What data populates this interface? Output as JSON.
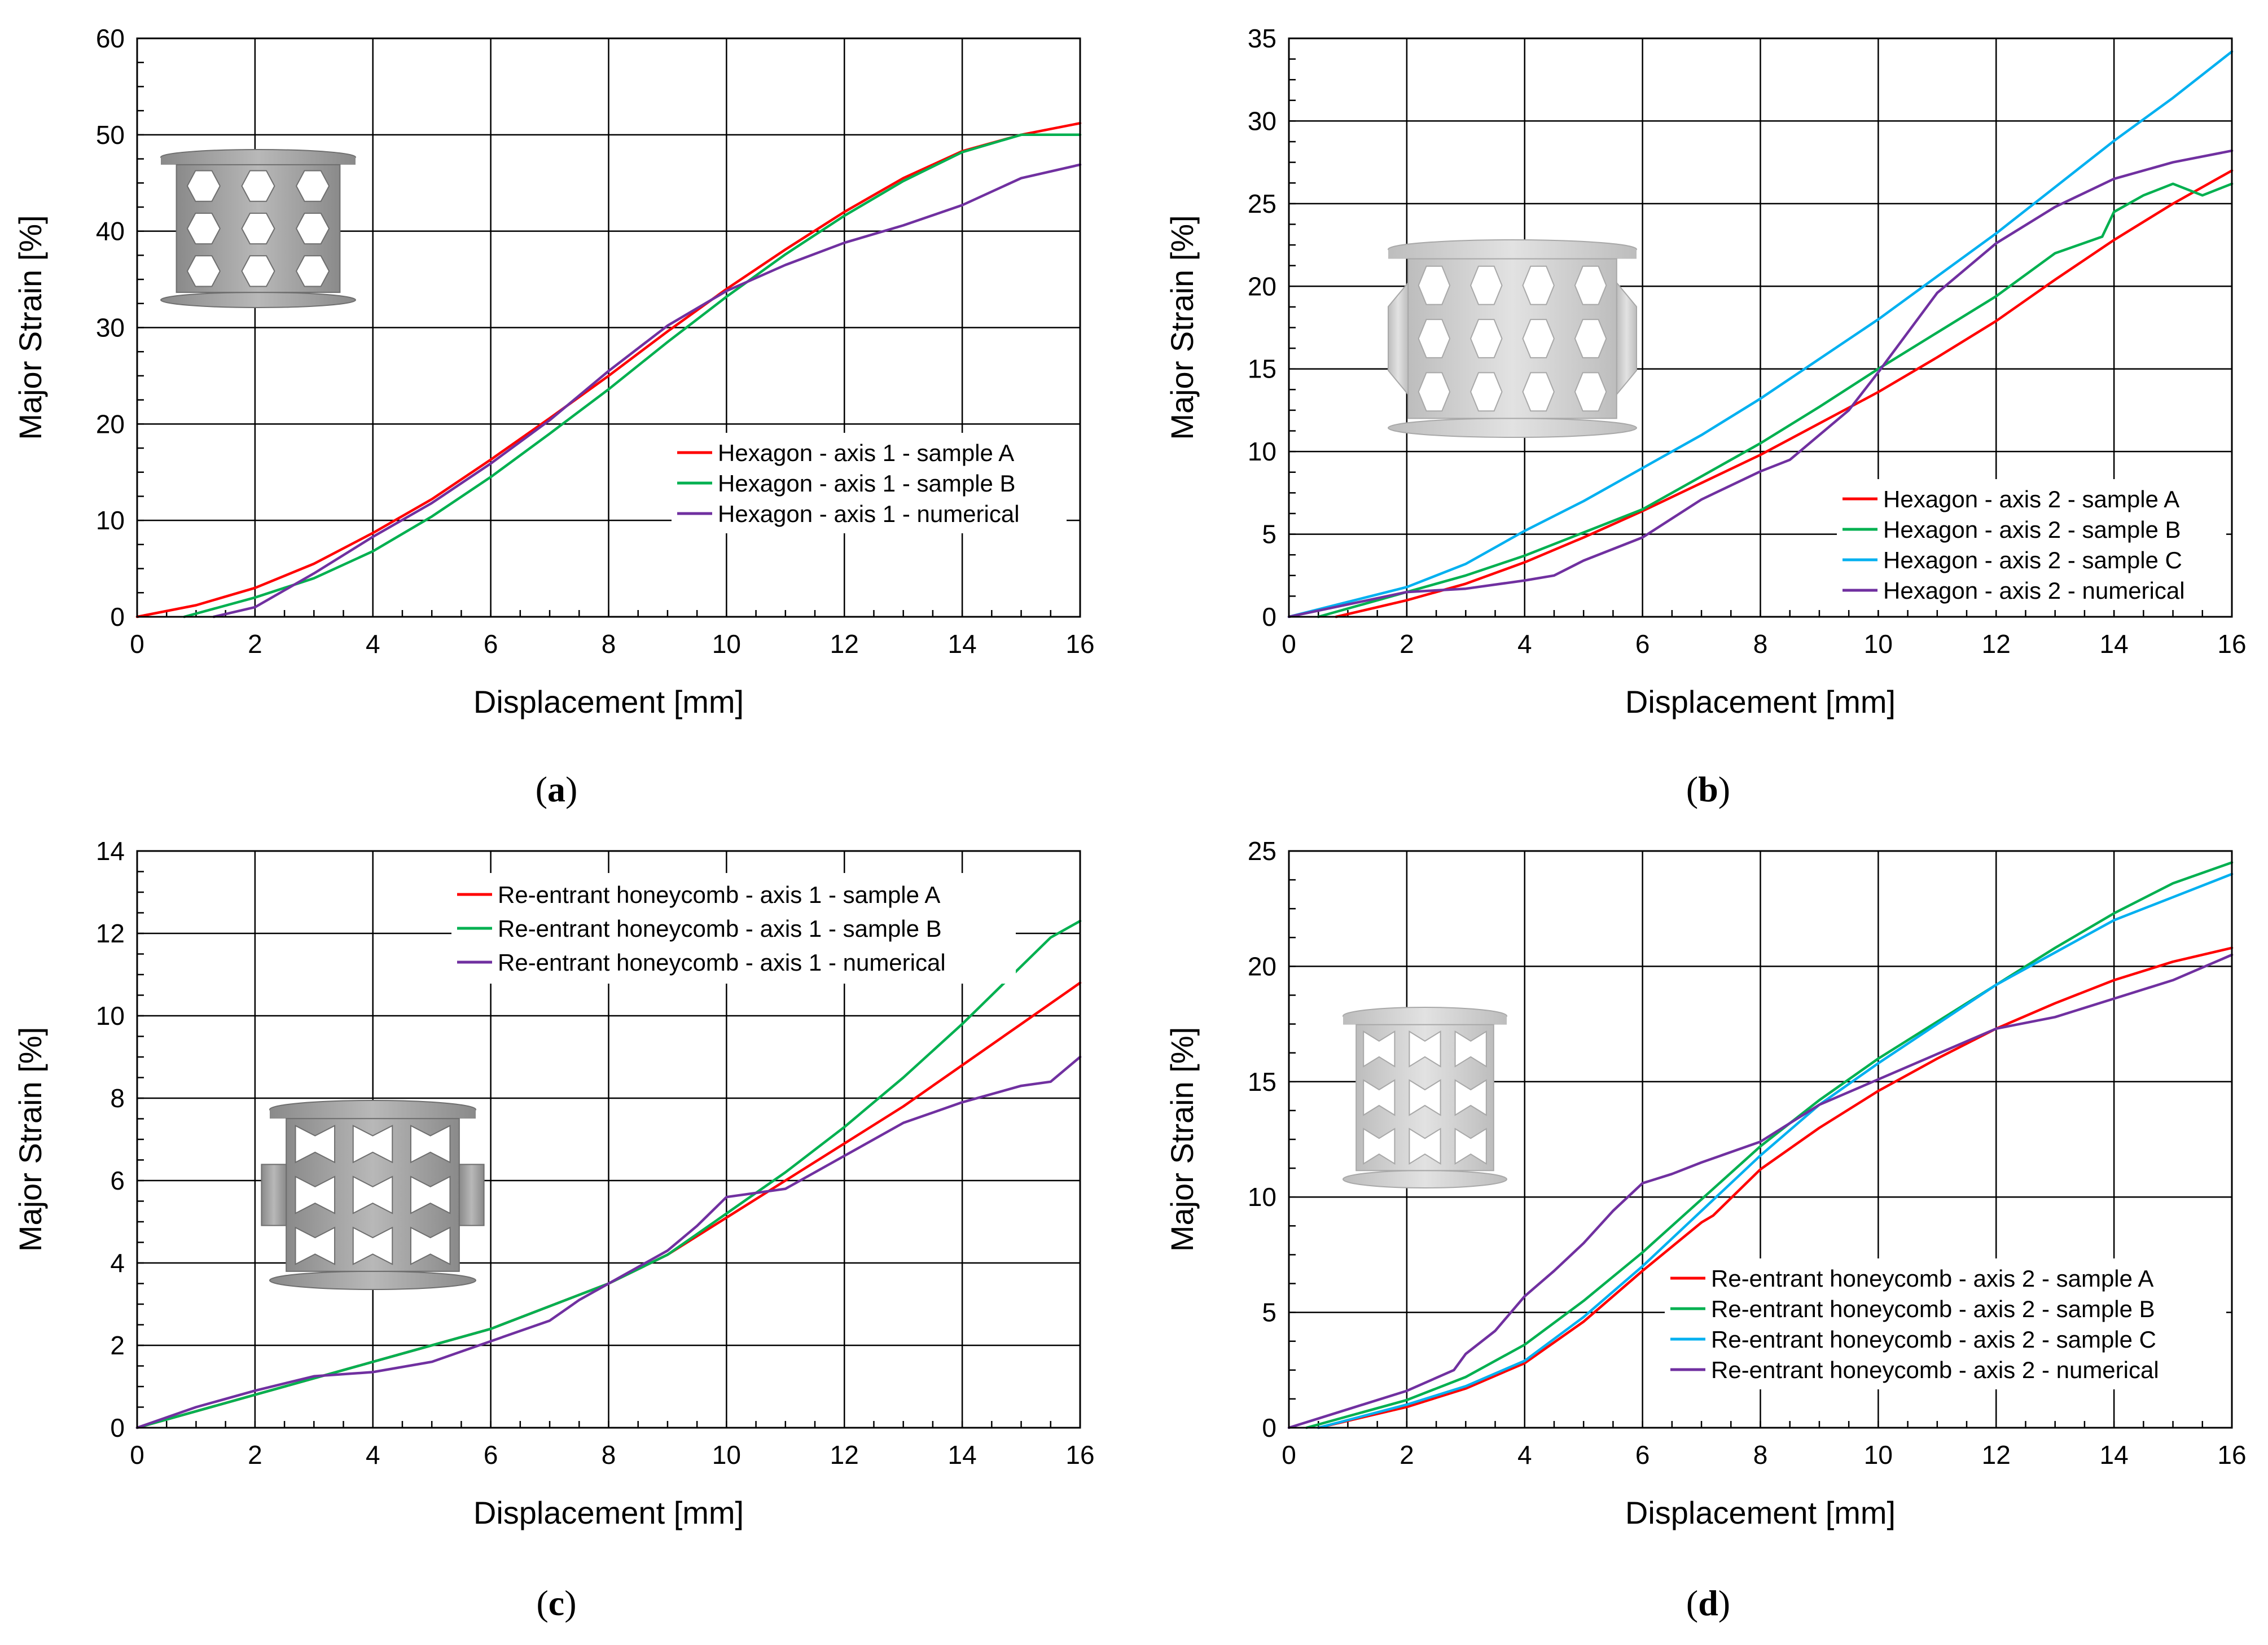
{
  "colors": {
    "red": "#ff0000",
    "green": "#00b050",
    "cyan": "#00b0f0",
    "purple": "#7030a0"
  },
  "chart_data": [
    {
      "type": "line",
      "caption": {
        "open": "(",
        "letter": "a",
        "close": ")"
      },
      "xlabel": "Displacement [mm]",
      "ylabel": "Major Strain [%]",
      "xlim": [
        0,
        16
      ],
      "ylim": [
        0,
        60
      ],
      "xticks": [
        0,
        2,
        4,
        6,
        8,
        10,
        12,
        14,
        16
      ],
      "yticks": [
        0,
        10,
        20,
        30,
        40,
        50,
        60
      ],
      "legend_position": "lower-right",
      "inset": "hexagon-axis-1-specimen",
      "series": [
        {
          "name": "Hexagon - axis 1 - sample A",
          "color": "#ff0000",
          "x": [
            0,
            1,
            2,
            3,
            4,
            5,
            6,
            7,
            8,
            9,
            10,
            11,
            12,
            13,
            14,
            15,
            16
          ],
          "y": [
            0,
            1.2,
            3,
            5.5,
            8.7,
            12.2,
            16.3,
            20.6,
            25,
            29.6,
            34,
            38.1,
            42,
            45.5,
            48.3,
            50,
            51.2
          ]
        },
        {
          "name": "Hexagon - axis 1 - sample B",
          "color": "#00b050",
          "x": [
            0.8,
            2,
            3,
            4,
            5,
            6,
            7,
            8,
            9,
            10,
            11,
            12,
            13,
            14,
            15,
            16
          ],
          "y": [
            0,
            2,
            4,
            6.8,
            10.4,
            14.5,
            19,
            23.6,
            28.5,
            33.2,
            37.6,
            41.6,
            45.2,
            48.2,
            50,
            50
          ]
        },
        {
          "name": "Hexagon - axis 1 - numerical",
          "color": "#7030a0",
          "x": [
            1.3,
            2,
            3,
            4,
            5,
            6,
            7,
            8,
            9,
            10,
            11,
            12,
            13,
            14,
            15,
            16
          ],
          "y": [
            0,
            1,
            4.5,
            8.3,
            11.8,
            15.9,
            20.4,
            25.5,
            30.2,
            33.8,
            36.5,
            38.8,
            40.6,
            42.7,
            45.5,
            46.9
          ]
        }
      ]
    },
    {
      "type": "line",
      "caption": {
        "open": "(",
        "letter": "b",
        "close": ")"
      },
      "xlabel": "Displacement [mm]",
      "ylabel": "Major Strain [%]",
      "xlim": [
        0,
        16
      ],
      "ylim": [
        0,
        35
      ],
      "xticks": [
        0,
        2,
        4,
        6,
        8,
        10,
        12,
        14,
        16
      ],
      "yticks": [
        0,
        5,
        10,
        15,
        20,
        25,
        30,
        35
      ],
      "legend_position": "lower-right",
      "inset": "hexagon-axis-2-specimen",
      "series": [
        {
          "name": "Hexagon - axis 2 - sample A",
          "color": "#ff0000",
          "x": [
            0.8,
            2,
            3,
            4,
            5,
            6,
            7,
            8,
            9,
            10,
            11,
            12,
            13,
            14,
            15,
            16
          ],
          "y": [
            0,
            1,
            2,
            3.3,
            4.8,
            6.4,
            8.1,
            9.8,
            11.7,
            13.6,
            15.7,
            17.9,
            20.4,
            22.8,
            25,
            27
          ]
        },
        {
          "name": "Hexagon - axis 2 - sample B",
          "color": "#00b050",
          "x": [
            0.5,
            2,
            3,
            4,
            5,
            6,
            7,
            8,
            9,
            10,
            11,
            12,
            13,
            13.8,
            14,
            14.5,
            15,
            15.5,
            16
          ],
          "y": [
            0,
            1.5,
            2.5,
            3.7,
            5.1,
            6.5,
            8.5,
            10.5,
            12.7,
            15,
            17.2,
            19.4,
            22,
            23,
            24.5,
            25.5,
            26.2,
            25.5,
            26.2
          ]
        },
        {
          "name": "Hexagon - axis 2 - sample C",
          "color": "#00b0f0",
          "x": [
            0,
            2,
            3,
            4,
            5,
            6,
            7,
            8,
            9,
            10,
            11,
            12,
            13,
            14,
            15,
            16
          ],
          "y": [
            0,
            1.8,
            3.2,
            5.2,
            7,
            9,
            11,
            13.2,
            15.6,
            18,
            20.6,
            23.2,
            26,
            28.8,
            31.4,
            34.2
          ]
        },
        {
          "name": "Hexagon - axis 2 - numerical",
          "color": "#7030a0",
          "x": [
            0,
            2,
            3,
            4,
            4.5,
            5,
            6,
            7,
            8,
            8.5,
            9,
            9.5,
            10,
            11,
            12,
            13,
            14,
            15,
            16
          ],
          "y": [
            0,
            1.5,
            1.7,
            2.2,
            2.5,
            3.4,
            4.8,
            7.1,
            8.8,
            9.5,
            11,
            12.5,
            14.8,
            19.6,
            22.6,
            24.8,
            26.5,
            27.5,
            28.2
          ]
        }
      ]
    },
    {
      "type": "line",
      "caption": {
        "open": "(",
        "letter": "c",
        "close": ")"
      },
      "xlabel": "Displacement [mm]",
      "ylabel": "Major Strain [%]",
      "xlim": [
        0,
        16
      ],
      "ylim": [
        0,
        14
      ],
      "xticks": [
        0,
        2,
        4,
        6,
        8,
        10,
        12,
        14,
        16
      ],
      "yticks": [
        0,
        2,
        4,
        6,
        8,
        10,
        12,
        14
      ],
      "legend_position": "top-right",
      "inset": "re-entrant-axis-1-specimen",
      "series": [
        {
          "name": "Re-entrant honeycomb - axis 1 - sample A",
          "color": "#ff0000",
          "x": [
            0,
            2,
            4,
            6,
            8,
            9,
            10,
            11,
            12,
            13,
            14,
            15,
            16
          ],
          "y": [
            0,
            0.8,
            1.6,
            2.4,
            3.5,
            4.2,
            5.1,
            6,
            6.9,
            7.8,
            8.8,
            9.8,
            10.8
          ]
        },
        {
          "name": "Re-entrant honeycomb - axis 1 - sample B",
          "color": "#00b050",
          "x": [
            0,
            2,
            4,
            6,
            8,
            9,
            10,
            11,
            12,
            13,
            14,
            15,
            15.5,
            16
          ],
          "y": [
            0,
            0.8,
            1.6,
            2.4,
            3.5,
            4.2,
            5.2,
            6.2,
            7.3,
            8.5,
            9.8,
            11.2,
            11.9,
            12.3
          ]
        },
        {
          "name": "Re-entrant honeycomb - axis 1 - numerical",
          "color": "#7030a0",
          "x": [
            0,
            1,
            2,
            3,
            4,
            5,
            6,
            7,
            7.5,
            8,
            9,
            9.5,
            10,
            11,
            12,
            13,
            14,
            15,
            15.5,
            16
          ],
          "y": [
            0,
            0.5,
            0.9,
            1.25,
            1.35,
            1.6,
            2.1,
            2.6,
            3.1,
            3.5,
            4.3,
            4.9,
            5.6,
            5.8,
            6.6,
            7.4,
            7.9,
            8.3,
            8.4,
            9
          ]
        }
      ]
    },
    {
      "type": "line",
      "caption": {
        "open": "(",
        "letter": "d",
        "close": ")"
      },
      "xlabel": "Displacement [mm]",
      "ylabel": "Major Strain [%]",
      "xlim": [
        0,
        16
      ],
      "ylim": [
        0,
        25
      ],
      "xticks": [
        0,
        2,
        4,
        6,
        8,
        10,
        12,
        14,
        16
      ],
      "yticks": [
        0,
        5,
        10,
        15,
        20,
        25
      ],
      "legend_position": "lower-right",
      "inset": "re-entrant-axis-2-specimen",
      "series": [
        {
          "name": "Re-entrant honeycomb - axis 2 - sample A",
          "color": "#ff0000",
          "x": [
            0.5,
            2,
            3,
            4,
            5,
            6,
            7,
            7.2,
            8,
            9,
            10,
            11,
            12,
            13,
            14,
            15,
            16
          ],
          "y": [
            0,
            0.9,
            1.7,
            2.8,
            4.6,
            6.8,
            8.9,
            9.2,
            11.2,
            13,
            14.6,
            16,
            17.3,
            18.4,
            19.4,
            20.2,
            20.8
          ]
        },
        {
          "name": "Re-entrant honeycomb - axis 2 - sample B",
          "color": "#00b050",
          "x": [
            0.3,
            2,
            3,
            4,
            5,
            6,
            7,
            8,
            9,
            10,
            11,
            12,
            13,
            14,
            15,
            16
          ],
          "y": [
            0,
            1.2,
            2.2,
            3.6,
            5.5,
            7.6,
            9.9,
            12.2,
            14.2,
            16,
            17.6,
            19.2,
            20.8,
            22.3,
            23.6,
            24.5
          ]
        },
        {
          "name": "Re-entrant honeycomb - axis 2 - sample C",
          "color": "#00b0f0",
          "x": [
            0.5,
            2,
            3,
            4,
            5,
            6,
            7,
            8,
            9,
            10,
            11,
            12,
            13,
            14,
            15,
            16
          ],
          "y": [
            0,
            1,
            1.8,
            2.9,
            4.8,
            7,
            9.4,
            11.8,
            14,
            15.8,
            17.5,
            19.2,
            20.6,
            22,
            23,
            24
          ]
        },
        {
          "name": "Re-entrant honeycomb - axis 2 - numerical",
          "color": "#7030a0",
          "x": [
            0,
            1,
            2,
            2.8,
            3,
            3.5,
            4,
            4.5,
            5,
            5.5,
            6,
            6.5,
            7,
            8,
            9,
            10,
            11,
            12,
            13,
            14,
            15,
            16
          ],
          "y": [
            0,
            0.8,
            1.6,
            2.5,
            3.2,
            4.2,
            5.7,
            6.8,
            8,
            9.4,
            10.6,
            11,
            11.5,
            12.4,
            14,
            15.1,
            16.2,
            17.3,
            17.8,
            18.6,
            19.4,
            20.5
          ]
        }
      ]
    }
  ]
}
